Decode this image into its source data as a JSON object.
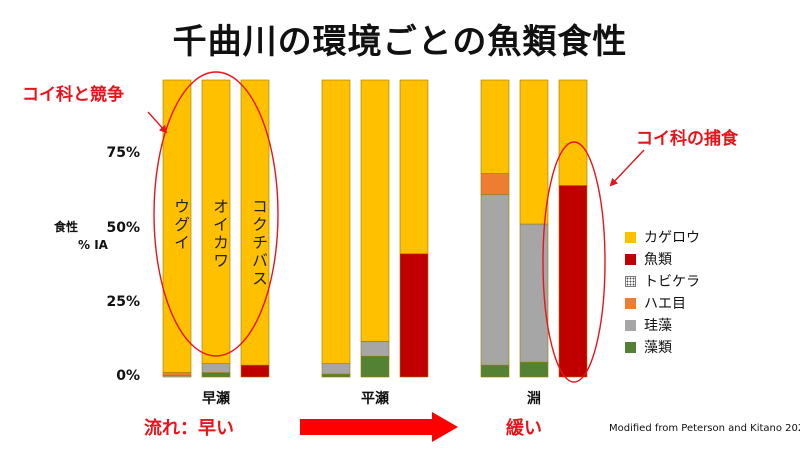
{
  "title": "千曲川の環境ごとの魚類食性",
  "annotations": {
    "competition": "コイ科と競争",
    "predation": "コイ科の捕食",
    "flow_label": "流れ：早い",
    "flow_slow": "緩い",
    "source": "Modified from Peterson and Kitano 2021a"
  },
  "colors": {
    "accent_red": "#e8141c",
    "annotation": "#e8141c"
  },
  "chart_data": {
    "type": "bar",
    "stacked": true,
    "ylabel_top": "食性",
    "ylabel_bottom": "% IA",
    "ylim": [
      0,
      100
    ],
    "yticks": [
      "0%",
      "25%",
      "50%",
      "75%"
    ],
    "grid": false,
    "legend_position": "right",
    "groups": [
      {
        "name": "早瀬",
        "species": [
          "ウグイ",
          "オイカワ",
          "コクチバス"
        ]
      },
      {
        "name": "平瀬",
        "species": [
          "",
          "",
          ""
        ]
      },
      {
        "name": "淵",
        "species": [
          "",
          "",
          ""
        ]
      }
    ],
    "series_order_bottom_to_top": [
      "藻類",
      "珪藻",
      "ハエ目",
      "トビケラ",
      "魚類",
      "カゲロウ"
    ],
    "series": [
      {
        "name": "カゲロウ",
        "color": "#ffc000",
        "values": [
          98.5,
          95.5,
          96,
          95.5,
          88,
          58.5,
          31.5,
          48.5,
          35.5
        ]
      },
      {
        "name": "魚類",
        "color": "#c00000",
        "values": [
          0,
          0,
          4,
          0,
          0,
          41.5,
          0,
          0,
          64.5
        ]
      },
      {
        "name": "トビケラ",
        "color": "#ffffff",
        "pattern": "dots",
        "values": [
          0,
          0,
          0,
          0,
          0,
          0,
          0,
          0,
          0
        ]
      },
      {
        "name": "ハエ目",
        "color": "#ed7d31",
        "values": [
          1,
          0,
          0,
          0,
          0,
          0,
          7,
          0,
          0
        ]
      },
      {
        "name": "珪藻",
        "color": "#a6a6a6",
        "values": [
          0.5,
          3,
          0,
          3.5,
          5,
          0,
          57.5,
          46.5,
          0
        ]
      },
      {
        "name": "藻類",
        "color": "#548235",
        "values": [
          0,
          1.5,
          0,
          1,
          7,
          0,
          4,
          5,
          0
        ]
      }
    ]
  }
}
